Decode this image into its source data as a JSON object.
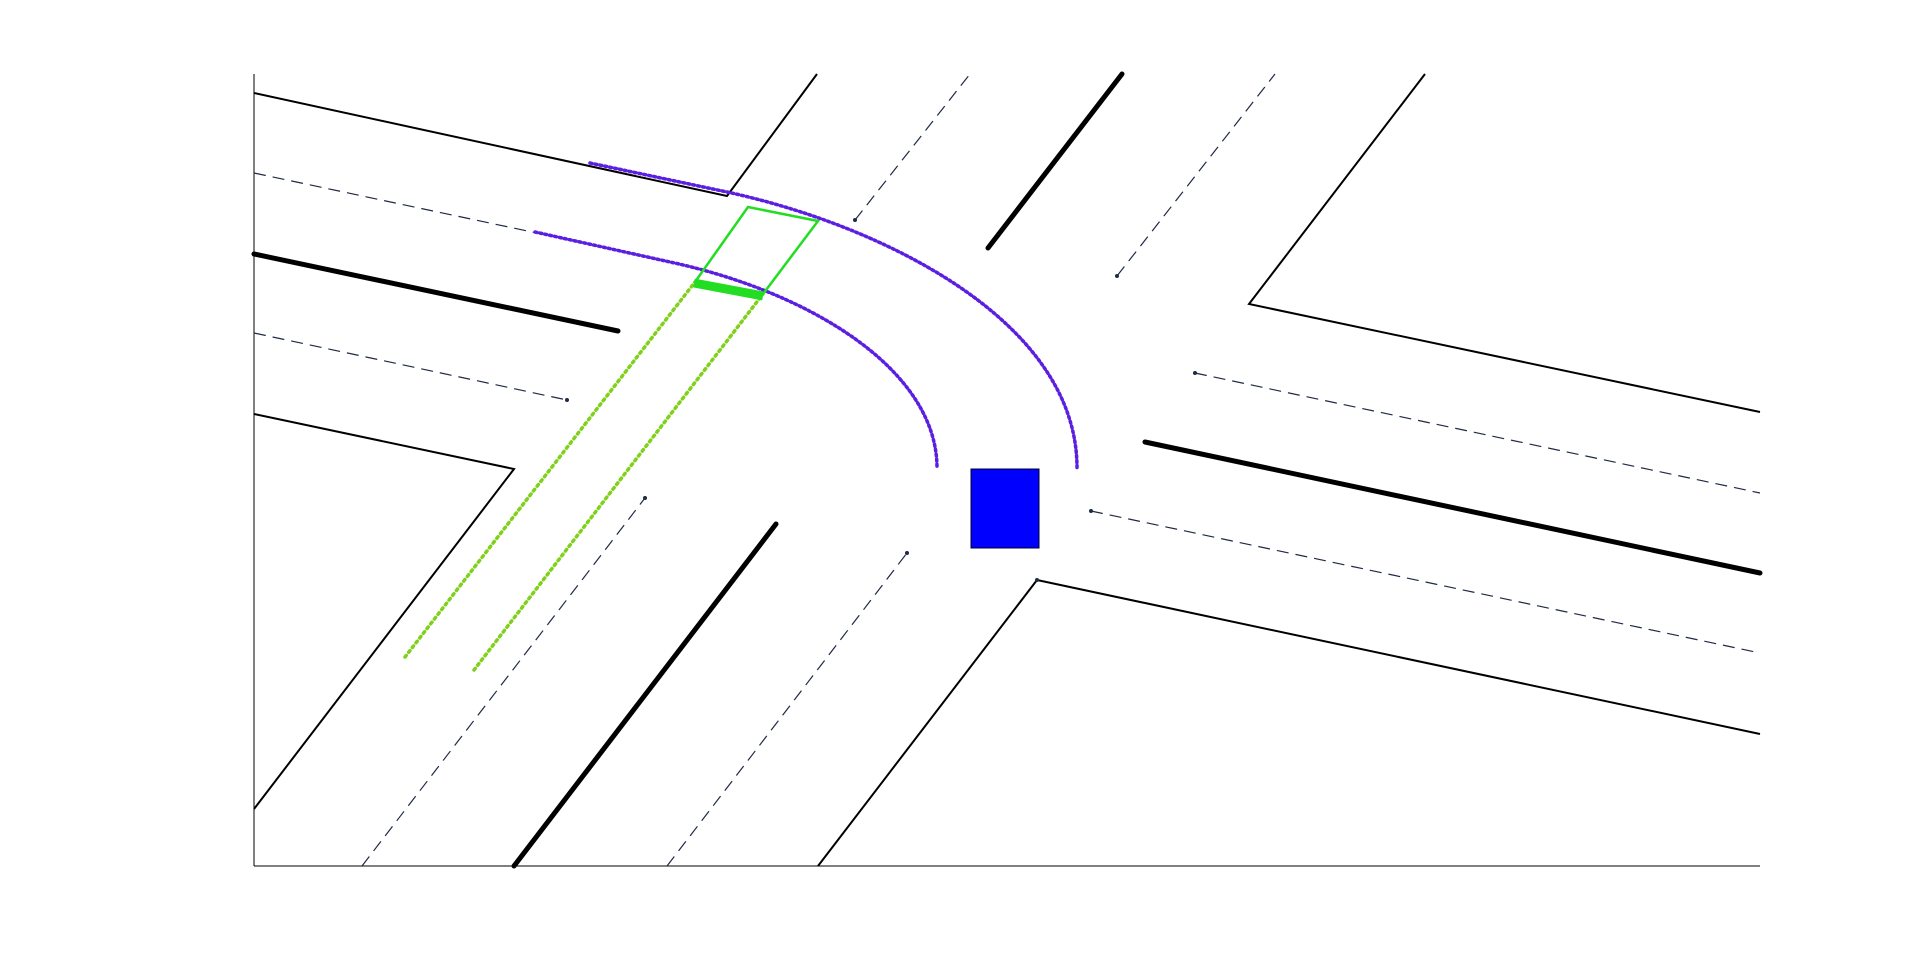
{
  "figure": {
    "background": "#ffffff",
    "axes_color": "#000000"
  },
  "scene": {
    "road_edge_color": "#000000",
    "lane_divider_color": "#000000",
    "lane_marking_color": "#1f2a44",
    "planned_path_color": "#5b1fe0",
    "other_vehicle_path_color": "#7fd11b",
    "other_vehicle_color": "#22dd22",
    "ego_vehicle_color": "#0000ff"
  }
}
